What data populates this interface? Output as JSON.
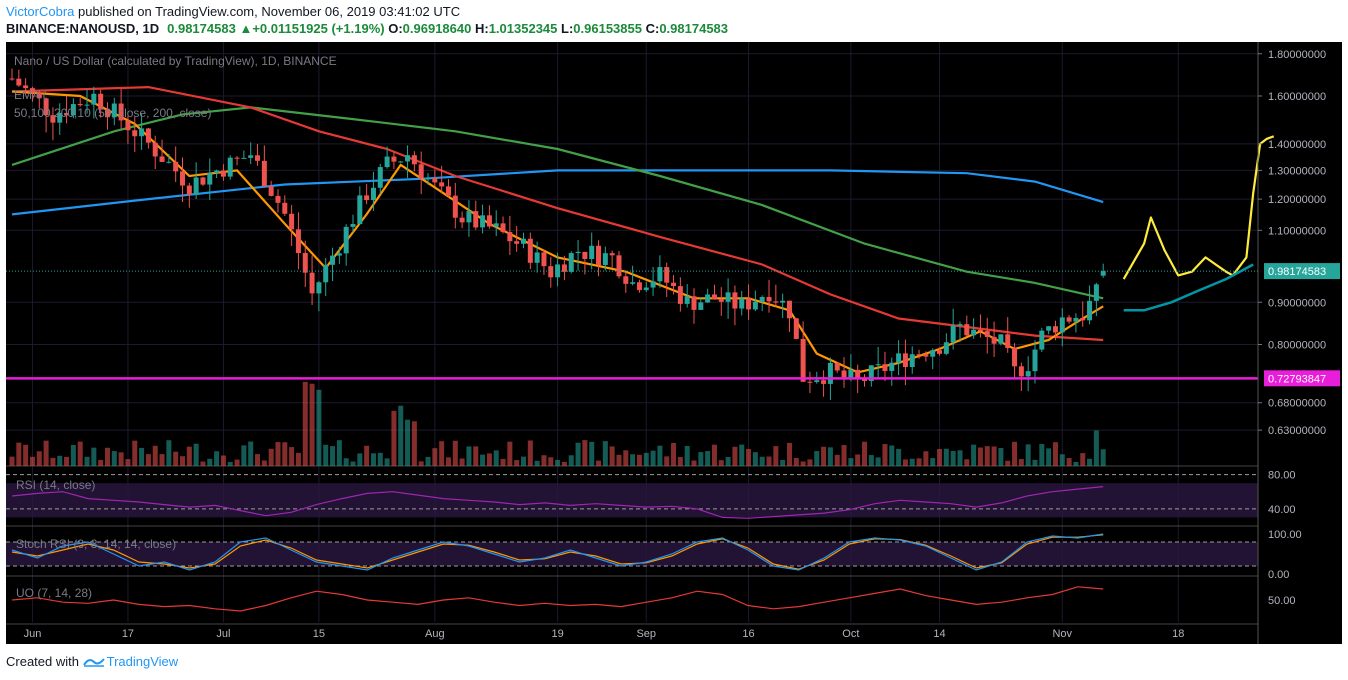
{
  "header": {
    "author": "VictorCobra",
    "published_text": "published on TradingView.com, November 06, 2019 03:41:02 UTC",
    "symbol": "BINANCE:NANOUSD, 1D",
    "price": "0.98174583",
    "change": "+0.01151925 (+1.19%)",
    "open_label": "O:",
    "open": "0.96918640",
    "high_label": "H:",
    "high": "1.01352345",
    "low_label": "L:",
    "low": "0.96153855",
    "close_label": "C:",
    "close": "0.98174583"
  },
  "chart_legend": {
    "title": "Nano / US Dollar (calculated by TradingView), 1D, BINANCE",
    "ema_line1": "EMA (",
    "ema_line2": "50,100,200,10 (50, close, 200, close)"
  },
  "price_labels": {
    "current": "0.98174583",
    "support": "0.72793847"
  },
  "colors": {
    "background": "#000000",
    "up_candle": "#26a69a",
    "down_candle": "#ef5350",
    "ema10": "#ff9800",
    "ema50": "#e53935",
    "ema100": "#43a047",
    "ema200": "#2196f3",
    "support_line": "#e91eda",
    "projection_yellow": "#ffeb3b",
    "projection_teal": "#0097a7",
    "rsi": "#9c27b0",
    "stoch_k": "#2196f3",
    "stoch_d": "#ff9800",
    "uo": "#e53935"
  },
  "indicators": {
    "rsi_label": "RSI (14, close)",
    "stoch_label": "Stoch RSI (3, 3, 14, 14, close)",
    "uo_label": "UO (7, 14, 28)",
    "rsi_ticks": [
      "80.00",
      "40.00"
    ],
    "stoch_ticks": [
      "100.00",
      "0.00"
    ],
    "uo_ticks": [
      "50.00"
    ]
  },
  "chart_data": {
    "type": "candlestick",
    "y_scale": "log",
    "ylim": [
      0.57,
      1.86
    ],
    "y_ticks": [
      "1.80000000",
      "1.60000000",
      "1.40000000",
      "1.30000000",
      "1.20000000",
      "1.10000000",
      "0.90000000",
      "0.80000000",
      "0.68000000",
      "0.63000000"
    ],
    "x_ticks": [
      {
        "label": "Jun",
        "day": 3
      },
      {
        "label": "17",
        "day": 17
      },
      {
        "label": "Jul",
        "day": 31
      },
      {
        "label": "15",
        "day": 45
      },
      {
        "label": "Aug",
        "day": 62
      },
      {
        "label": "19",
        "day": 80
      },
      {
        "label": "Sep",
        "day": 93
      },
      {
        "label": "16",
        "day": 108
      },
      {
        "label": "Oct",
        "day": 123
      },
      {
        "label": "14",
        "day": 136
      },
      {
        "label": "Nov",
        "day": 154
      },
      {
        "label": "18",
        "day": 171
      }
    ],
    "support_level": 0.72793847,
    "last_close": 0.98174583,
    "ohlc_anchors": [
      {
        "day": 0,
        "close": 1.68
      },
      {
        "day": 6,
        "close": 1.52
      },
      {
        "day": 12,
        "close": 1.6
      },
      {
        "day": 18,
        "close": 1.45
      },
      {
        "day": 22,
        "close": 1.35
      },
      {
        "day": 26,
        "close": 1.25
      },
      {
        "day": 30,
        "close": 1.3
      },
      {
        "day": 35,
        "close": 1.36
      },
      {
        "day": 40,
        "close": 1.15
      },
      {
        "day": 44,
        "close": 0.92
      },
      {
        "day": 48,
        "close": 1.06
      },
      {
        "day": 52,
        "close": 1.22
      },
      {
        "day": 55,
        "close": 1.32
      },
      {
        "day": 58,
        "close": 1.36
      },
      {
        "day": 62,
        "close": 1.24
      },
      {
        "day": 66,
        "close": 1.14
      },
      {
        "day": 71,
        "close": 1.1
      },
      {
        "day": 75,
        "close": 1.05
      },
      {
        "day": 79,
        "close": 0.98
      },
      {
        "day": 83,
        "close": 1.04
      },
      {
        "day": 88,
        "close": 1.02
      },
      {
        "day": 91,
        "close": 0.95
      },
      {
        "day": 95,
        "close": 0.97
      },
      {
        "day": 99,
        "close": 0.9
      },
      {
        "day": 103,
        "close": 0.91
      },
      {
        "day": 107,
        "close": 0.89
      },
      {
        "day": 111,
        "close": 0.93
      },
      {
        "day": 114,
        "close": 0.88
      },
      {
        "day": 116,
        "close": 0.73
      },
      {
        "day": 120,
        "close": 0.74
      },
      {
        "day": 124,
        "close": 0.72
      },
      {
        "day": 128,
        "close": 0.75
      },
      {
        "day": 132,
        "close": 0.78
      },
      {
        "day": 136,
        "close": 0.8
      },
      {
        "day": 139,
        "close": 0.84
      },
      {
        "day": 142,
        "close": 0.82
      },
      {
        "day": 145,
        "close": 0.8
      },
      {
        "day": 147,
        "close": 0.74
      },
      {
        "day": 149,
        "close": 0.76
      },
      {
        "day": 151,
        "close": 0.82
      },
      {
        "day": 154,
        "close": 0.86
      },
      {
        "day": 157,
        "close": 0.87
      },
      {
        "day": 159,
        "close": 0.92
      },
      {
        "day": 160,
        "close": 0.98
      }
    ],
    "ema_lines": [
      {
        "name": "EMA 200",
        "color": "#2196f3",
        "points": [
          [
            0,
            1.15
          ],
          [
            20,
            1.2
          ],
          [
            40,
            1.25
          ],
          [
            60,
            1.27
          ],
          [
            80,
            1.3
          ],
          [
            100,
            1.3
          ],
          [
            120,
            1.3
          ],
          [
            140,
            1.29
          ],
          [
            150,
            1.26
          ],
          [
            160,
            1.19
          ]
        ]
      },
      {
        "name": "EMA 100",
        "color": "#43a047",
        "points": [
          [
            0,
            1.32
          ],
          [
            15,
            1.45
          ],
          [
            25,
            1.52
          ],
          [
            35,
            1.55
          ],
          [
            50,
            1.5
          ],
          [
            65,
            1.45
          ],
          [
            80,
            1.38
          ],
          [
            95,
            1.28
          ],
          [
            110,
            1.18
          ],
          [
            125,
            1.06
          ],
          [
            140,
            0.98
          ],
          [
            150,
            0.95
          ],
          [
            160,
            0.91
          ]
        ]
      },
      {
        "name": "EMA 50",
        "color": "#e53935",
        "points": [
          [
            0,
            1.62
          ],
          [
            20,
            1.64
          ],
          [
            35,
            1.55
          ],
          [
            45,
            1.45
          ],
          [
            55,
            1.38
          ],
          [
            65,
            1.28
          ],
          [
            80,
            1.17
          ],
          [
            95,
            1.08
          ],
          [
            110,
            1.0
          ],
          [
            120,
            0.92
          ],
          [
            130,
            0.86
          ],
          [
            140,
            0.84
          ],
          [
            150,
            0.82
          ],
          [
            160,
            0.81
          ]
        ]
      },
      {
        "name": "EMA 10",
        "color": "#ff9800",
        "points": [
          [
            0,
            1.62
          ],
          [
            10,
            1.6
          ],
          [
            18,
            1.48
          ],
          [
            26,
            1.28
          ],
          [
            33,
            1.3
          ],
          [
            40,
            1.12
          ],
          [
            46,
            0.99
          ],
          [
            52,
            1.15
          ],
          [
            57,
            1.32
          ],
          [
            62,
            1.24
          ],
          [
            70,
            1.12
          ],
          [
            80,
            1.02
          ],
          [
            90,
            0.98
          ],
          [
            100,
            0.91
          ],
          [
            108,
            0.91
          ],
          [
            114,
            0.88
          ],
          [
            118,
            0.78
          ],
          [
            124,
            0.74
          ],
          [
            130,
            0.76
          ],
          [
            136,
            0.79
          ],
          [
            142,
            0.83
          ],
          [
            147,
            0.79
          ],
          [
            152,
            0.81
          ],
          [
            156,
            0.85
          ],
          [
            160,
            0.89
          ]
        ]
      }
    ],
    "projection_yellow": [
      [
        163,
        0.96
      ],
      [
        166,
        1.06
      ],
      [
        167,
        1.14
      ],
      [
        169,
        1.04
      ],
      [
        171,
        0.97
      ],
      [
        173,
        0.98
      ],
      [
        175,
        1.02
      ],
      [
        178,
        0.98
      ],
      [
        179,
        0.97
      ],
      [
        181,
        1.02
      ],
      [
        182,
        1.22
      ],
      [
        183,
        1.4
      ],
      [
        184,
        1.42
      ],
      [
        185,
        1.43
      ]
    ],
    "projection_teal": [
      [
        163,
        0.88
      ],
      [
        166,
        0.88
      ],
      [
        170,
        0.9
      ],
      [
        174,
        0.93
      ],
      [
        178,
        0.96
      ],
      [
        182,
        1.0
      ]
    ],
    "rsi": [
      55,
      58,
      60,
      52,
      50,
      48,
      45,
      42,
      44,
      38,
      32,
      36,
      45,
      52,
      58,
      60,
      56,
      52,
      50,
      48,
      45,
      47,
      44,
      46,
      44,
      42,
      43,
      40,
      30,
      29,
      31,
      33,
      35,
      39,
      46,
      50,
      48,
      46,
      42,
      47,
      55,
      60,
      63,
      66
    ],
    "stoch_k": [
      60,
      40,
      70,
      80,
      50,
      20,
      30,
      10,
      30,
      80,
      90,
      60,
      30,
      20,
      10,
      40,
      60,
      80,
      70,
      50,
      30,
      40,
      60,
      40,
      20,
      30,
      50,
      80,
      90,
      60,
      20,
      10,
      40,
      80,
      90,
      85,
      70,
      40,
      10,
      30,
      80,
      95,
      90,
      100
    ],
    "stoch_d": [
      55,
      45,
      60,
      75,
      60,
      30,
      25,
      15,
      25,
      70,
      85,
      65,
      35,
      25,
      15,
      35,
      55,
      75,
      72,
      55,
      35,
      38,
      55,
      45,
      25,
      28,
      45,
      75,
      88,
      65,
      25,
      12,
      35,
      75,
      88,
      86,
      72,
      45,
      15,
      28,
      75,
      92,
      92,
      98
    ],
    "uo": [
      50,
      52,
      48,
      47,
      50,
      46,
      44,
      45,
      42,
      40,
      45,
      52,
      58,
      55,
      50,
      48,
      46,
      50,
      52,
      48,
      45,
      47,
      45,
      46,
      44,
      48,
      52,
      58,
      55,
      45,
      42,
      44,
      48,
      52,
      56,
      60,
      54,
      50,
      46,
      48,
      52,
      55,
      62,
      60
    ]
  },
  "footer": {
    "created_with": "Created with",
    "brand": "TradingView"
  }
}
